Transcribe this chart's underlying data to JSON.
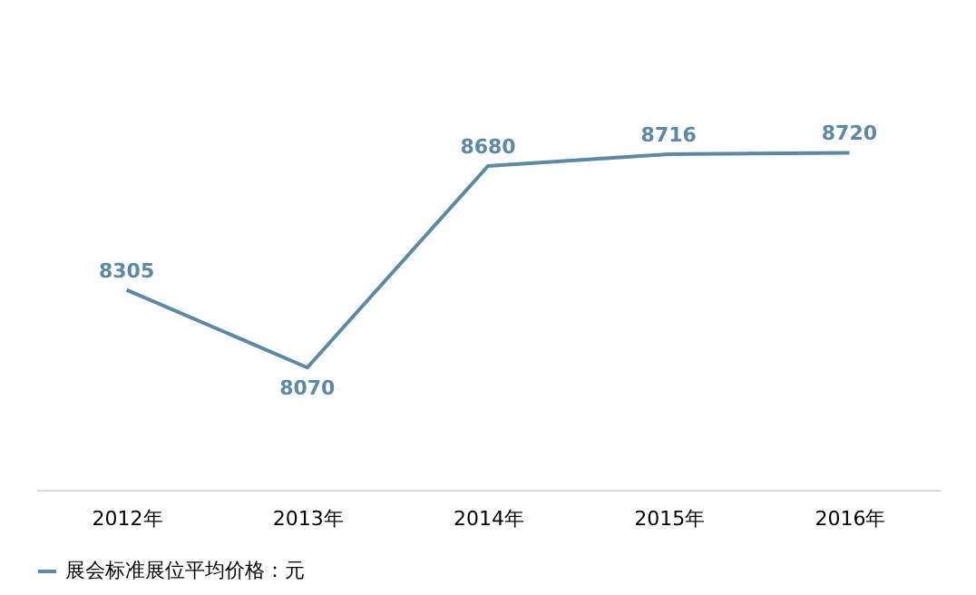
{
  "chart_data": {
    "type": "line",
    "categories": [
      "2012年",
      "2013年",
      "2014年",
      "2015年",
      "2016年"
    ],
    "series": [
      {
        "name": "展会标准展位平均价格：元",
        "color": "#5b8aa6",
        "values": [
          8305,
          8070,
          8680,
          8716,
          8720
        ]
      }
    ],
    "tick_labels": "x",
    "data_labels": true,
    "grid": false,
    "legend": "bottom",
    "marker": "none",
    "line_style": "solid"
  }
}
